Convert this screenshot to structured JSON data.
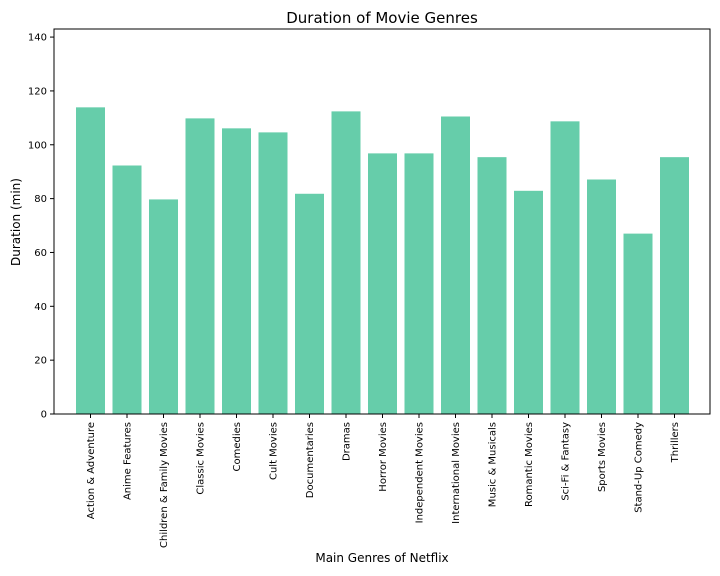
{
  "chart_data": {
    "type": "bar",
    "title": "Duration of Movie Genres",
    "xlabel": "Main Genres of Netflix",
    "ylabel": "Duration (min)",
    "ylim": [
      0,
      143
    ],
    "yticks": [
      0,
      20,
      40,
      60,
      80,
      100,
      120,
      140
    ],
    "bar_color": "#66cdaa",
    "grid": false,
    "legend": "none",
    "categories": [
      "Action & Adventure",
      "Anime Features",
      "Children & Family Movies",
      "Classic Movies",
      "Comedies",
      "Cult Movies",
      "Documentaries",
      "Dramas",
      "Horror Movies",
      "Independent Movies",
      "International Movies",
      "Music & Musicals",
      "Romantic Movies",
      "Sci-Fi & Fantasy",
      "Sports Movies",
      "Stand-Up Comedy",
      "Thrillers"
    ],
    "values": [
      113.9,
      92.3,
      79.7,
      109.8,
      106.1,
      104.6,
      81.8,
      112.4,
      96.8,
      96.8,
      110.5,
      95.4,
      82.9,
      108.7,
      87.1,
      67.0,
      95.4
    ]
  }
}
